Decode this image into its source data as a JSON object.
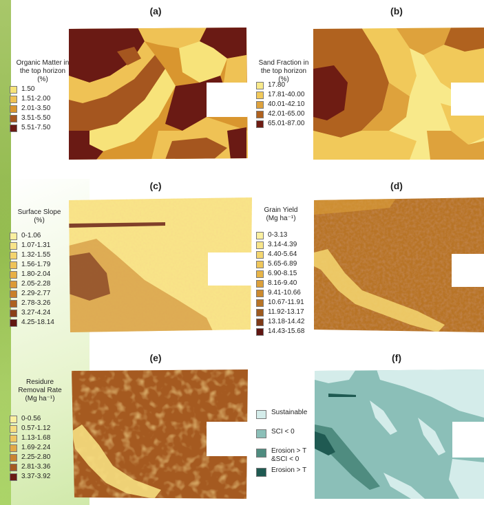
{
  "panels": {
    "a": {
      "label": "(a)",
      "legend_title": [
        "Organic Matter in",
        "the top horizon",
        "(%)"
      ],
      "classes": [
        {
          "label": "1.50",
          "color": "#f7e37a"
        },
        {
          "label": "1.51-2.00",
          "color": "#efc255"
        },
        {
          "label": "2.01-3.50",
          "color": "#d9962f"
        },
        {
          "label": "3.51-5.50",
          "color": "#a5561f"
        },
        {
          "label": "5.51-7.50",
          "color": "#6a1a14"
        }
      ]
    },
    "b": {
      "label": "(b)",
      "legend_title": [
        "Sand Fraction in",
        "the top horizon",
        "(%)"
      ],
      "classes": [
        {
          "label": "17.80",
          "color": "#f8e98a"
        },
        {
          "label": "17.81-40.00",
          "color": "#f1c95a"
        },
        {
          "label": "40.01-42.10",
          "color": "#dea23c"
        },
        {
          "label": "42.01-65.00",
          "color": "#b0621f"
        },
        {
          "label": "65.01-87.00",
          "color": "#6e1c13"
        }
      ]
    },
    "c": {
      "label": "(c)",
      "legend_title": [
        "Surface Slope",
        "(%)"
      ],
      "classes": [
        {
          "label": "0-1.06",
          "color": "#fbf0a0"
        },
        {
          "label": "1.07-1.31",
          "color": "#f8e488"
        },
        {
          "label": "1.32-1.55",
          "color": "#f4d46c"
        },
        {
          "label": "1.56-1.79",
          "color": "#efc357"
        },
        {
          "label": "1.80-2.04",
          "color": "#e8b043"
        },
        {
          "label": "2.05-2.28",
          "color": "#dc9a35"
        },
        {
          "label": "2.29-2.77",
          "color": "#c97f2a"
        },
        {
          "label": "2.78-3.26",
          "color": "#ad6121"
        },
        {
          "label": "3.27-4.24",
          "color": "#8a3f18"
        },
        {
          "label": "4.25-18.14",
          "color": "#621711"
        }
      ]
    },
    "d": {
      "label": "(d)",
      "legend_title": [
        "Grain Yield",
        "(Mg ha⁻¹)"
      ],
      "classes": [
        {
          "label": "0-3.13",
          "color": "#fbf0a0"
        },
        {
          "label": "3.14-4.39",
          "color": "#f8e58a"
        },
        {
          "label": "4.40-5.64",
          "color": "#f4d670"
        },
        {
          "label": "5.65-6.89",
          "color": "#efc65a"
        },
        {
          "label": "6.90-8.15",
          "color": "#e7b447"
        },
        {
          "label": "8.16-9.40",
          "color": "#dca03a"
        },
        {
          "label": "9.41-10.66",
          "color": "#cc8a2e"
        },
        {
          "label": "10.67-11.91",
          "color": "#b87426"
        },
        {
          "label": "11.92-13.17",
          "color": "#9e5a1f"
        },
        {
          "label": "13.18-14.42",
          "color": "#7f3a18"
        },
        {
          "label": "14.43-15.68",
          "color": "#601612"
        }
      ]
    },
    "e": {
      "label": "(e)",
      "legend_title": [
        "Residure",
        "Removal Rate",
        "(Mg ha⁻¹)"
      ],
      "classes": [
        {
          "label": "0-0.56",
          "color": "#fbf0a0"
        },
        {
          "label": "0.57-1.12",
          "color": "#f6de80"
        },
        {
          "label": "1.13-1.68",
          "color": "#efc660"
        },
        {
          "label": "1.69-2.24",
          "color": "#e2a946"
        },
        {
          "label": "2.25-2.80",
          "color": "#c98430"
        },
        {
          "label": "2.81-3.36",
          "color": "#a55a20"
        },
        {
          "label": "3.37-3.92",
          "color": "#6a1c14"
        }
      ]
    },
    "f": {
      "label": "(f)",
      "legend_title": [],
      "classes": [
        {
          "label": "Sustainable",
          "color": "#d4ecea"
        },
        {
          "label": "SCI < 0",
          "color": "#8bbfb8"
        },
        {
          "label": "Erosion > T\n&SCI < 0",
          "color": "#4f8c80"
        },
        {
          "label": "Erosion > T",
          "color": "#1f5a52"
        }
      ]
    }
  }
}
